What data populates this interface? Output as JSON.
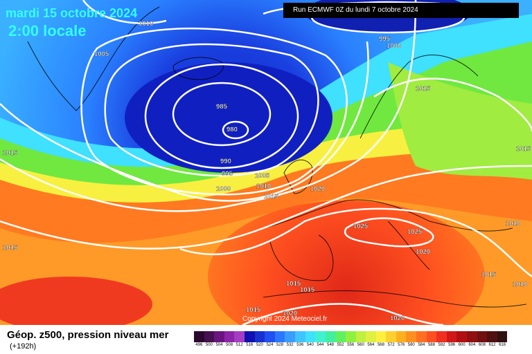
{
  "header": {
    "date": "mardi 15 octobre 2024",
    "time": "2:00 locale",
    "run": "Run ECMWF 0Z du lundi 7 octobre 2024"
  },
  "map": {
    "copyright": "Copyright 2024 Meteociel.fr",
    "pressure_labels": [
      "1010",
      "1005",
      "995",
      "1000",
      "985",
      "980",
      "1015",
      "990",
      "995",
      "1005",
      "1010",
      "1000",
      "1015",
      "1020",
      "1015",
      "1025",
      "1025",
      "1020",
      "1010",
      "1015",
      "1015",
      "1015",
      "1015",
      "1020",
      "1020",
      "1015",
      "1010",
      "1015",
      "1020"
    ]
  },
  "footer": {
    "title": "Géop. z500, pression niveau mer",
    "subtitle": "(+192h)"
  },
  "legend": {
    "labels": [
      "496",
      "500",
      "504",
      "508",
      "512",
      "516",
      "520",
      "524",
      "528",
      "532",
      "536",
      "540",
      "544",
      "548",
      "552",
      "556",
      "560",
      "564",
      "568",
      "572",
      "576",
      "580",
      "584",
      "588",
      "592",
      "596",
      "600",
      "604",
      "608",
      "612",
      "616"
    ],
    "colors": [
      "#2a0830",
      "#45104f",
      "#6b1480",
      "#8d24a8",
      "#a43cc4",
      "#1010b0",
      "#1830d0",
      "#2050f0",
      "#2a78ff",
      "#3a9cff",
      "#40c4ff",
      "#40e0ff",
      "#40f0d0",
      "#40f0a0",
      "#60f060",
      "#90f040",
      "#c0f040",
      "#e0f040",
      "#fff040",
      "#ffd030",
      "#ffb020",
      "#ff9020",
      "#ff7020",
      "#ff5020",
      "#f03020",
      "#d01818",
      "#b01010",
      "#901010",
      "#701010",
      "#501010",
      "#301010"
    ]
  },
  "colors": {
    "text_accent": "#33ffff",
    "isobar": "#ffffff"
  }
}
